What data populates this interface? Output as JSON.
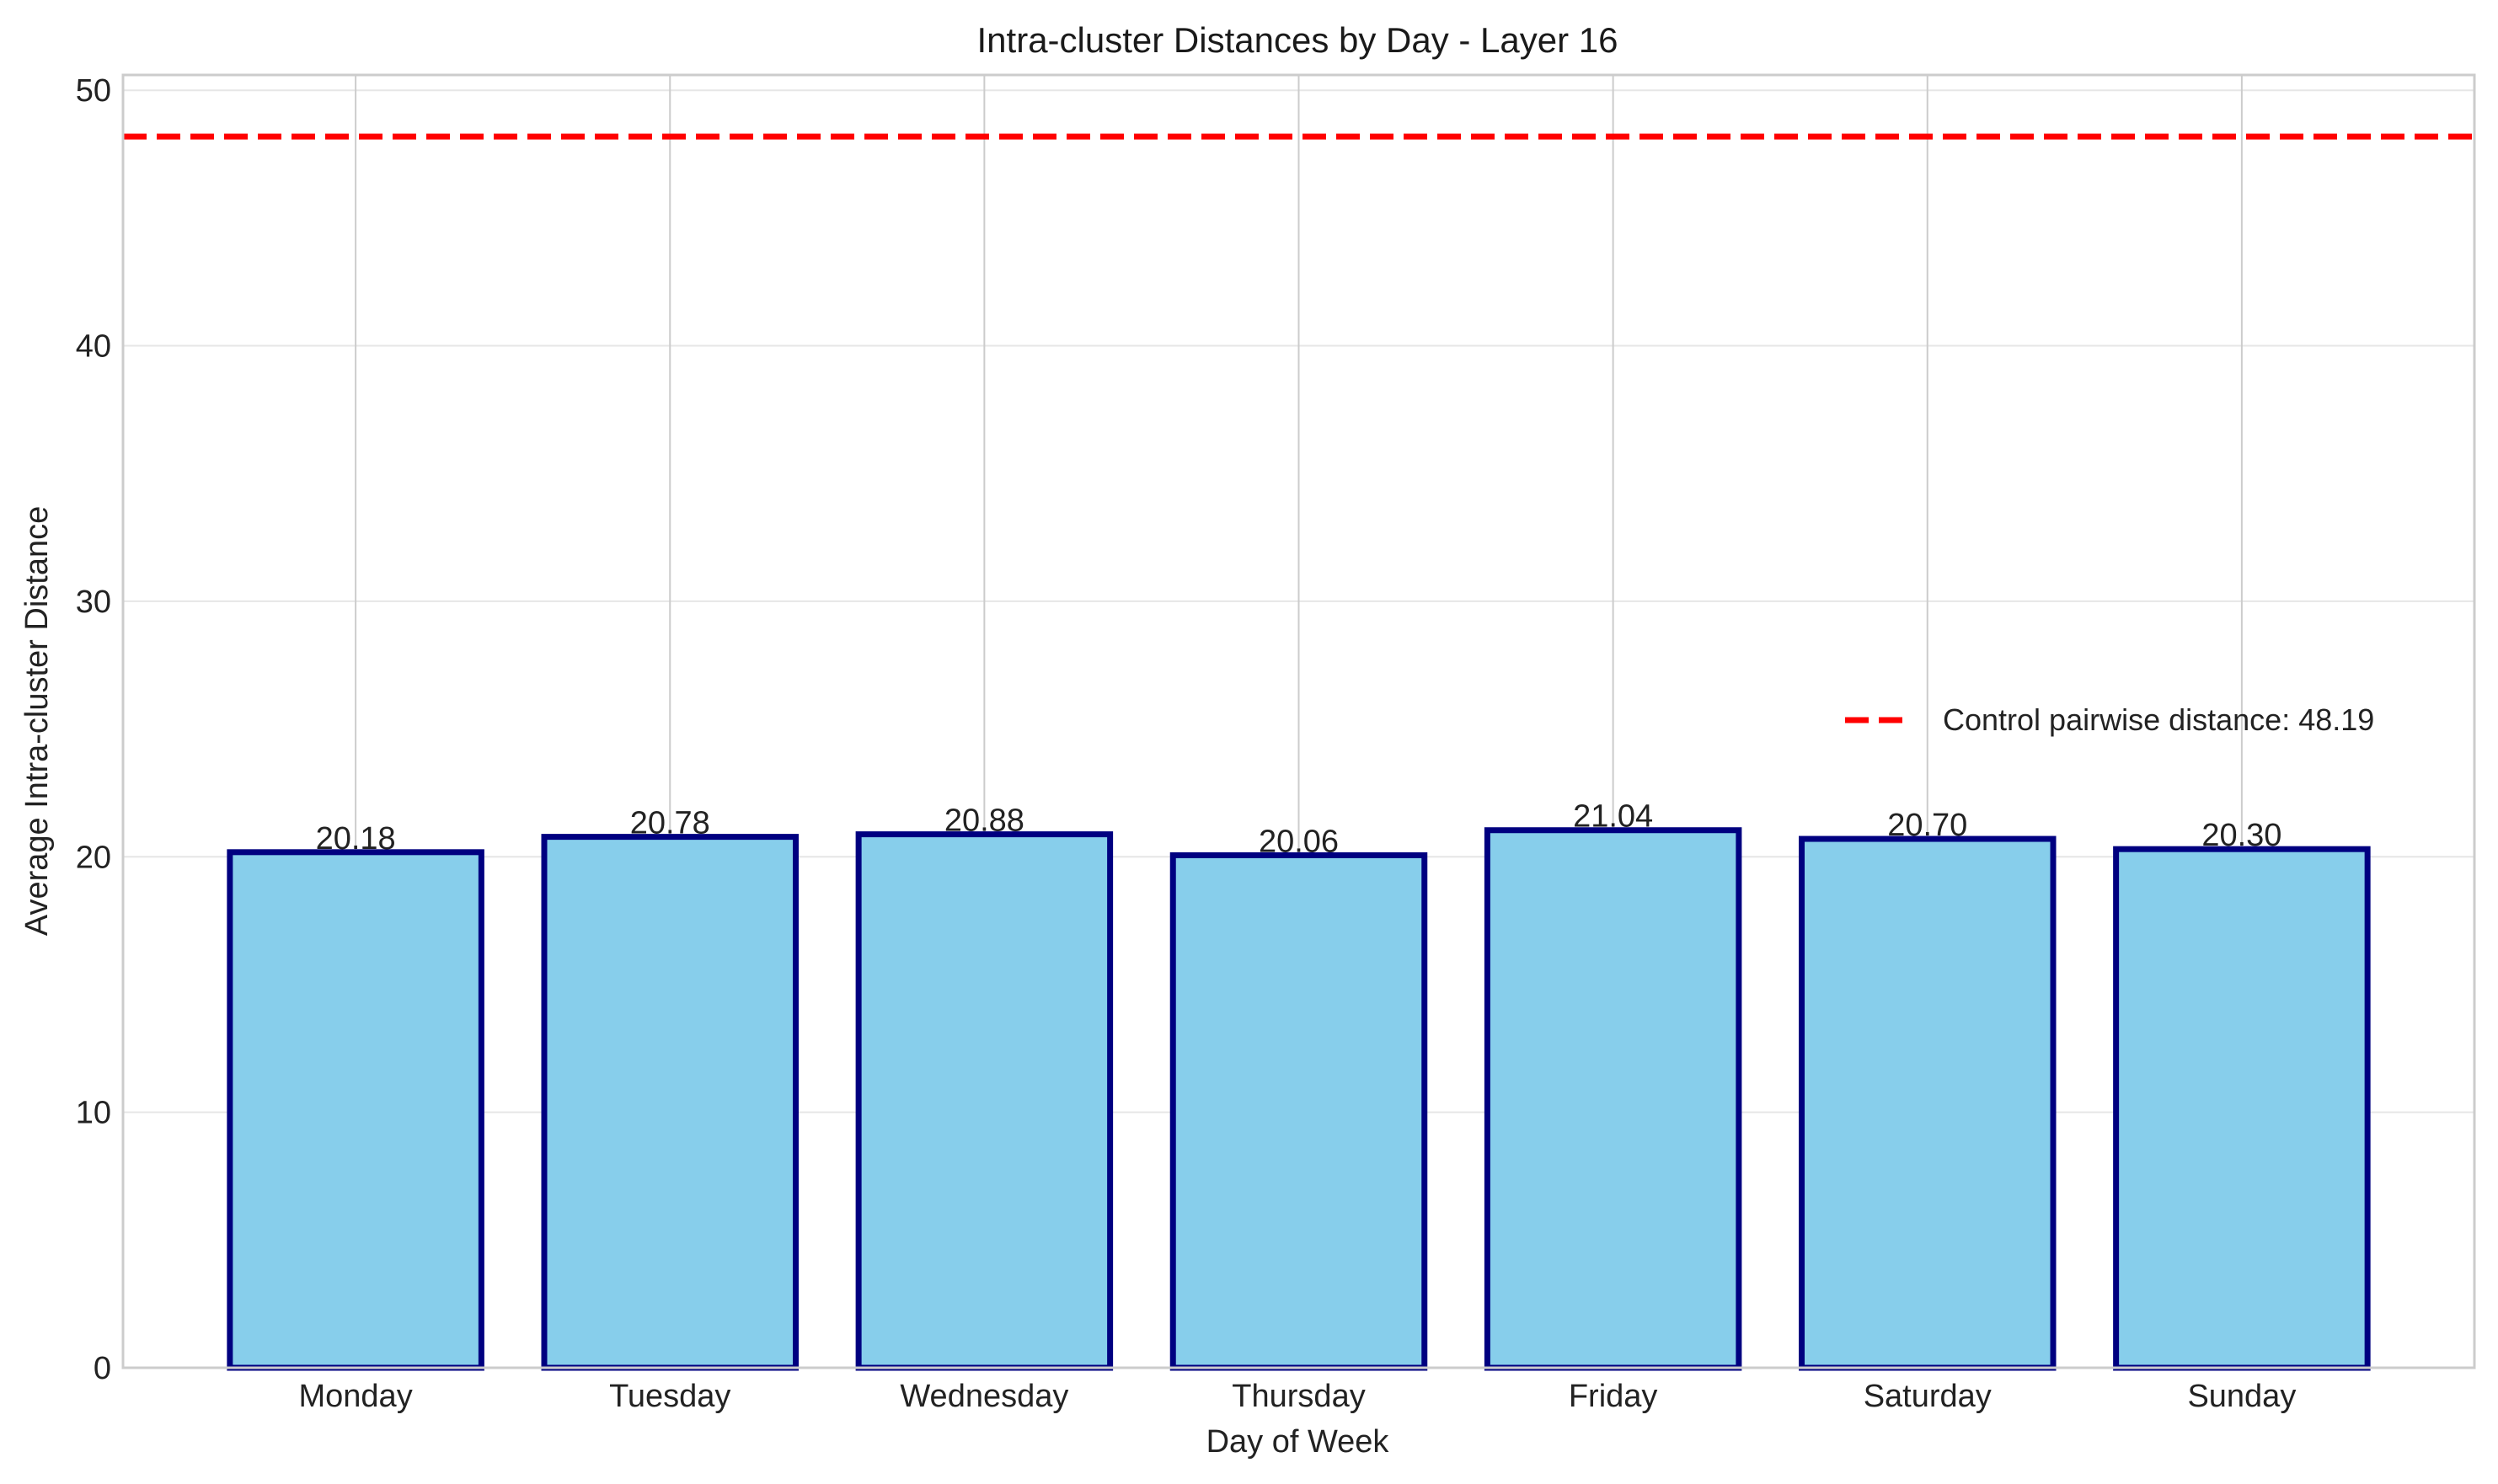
{
  "chart_data": {
    "type": "bar",
    "title": "Intra-cluster Distances by Day - Layer 16",
    "xlabel": "Day of Week",
    "ylabel": "Average Intra-cluster Distance",
    "categories": [
      "Monday",
      "Tuesday",
      "Wednesday",
      "Thursday",
      "Friday",
      "Saturday",
      "Sunday"
    ],
    "values": [
      20.18,
      20.78,
      20.88,
      20.06,
      21.04,
      20.7,
      20.3
    ],
    "value_labels": [
      "20.18",
      "20.78",
      "20.88",
      "20.06",
      "21.04",
      "20.70",
      "20.30"
    ],
    "ylim": [
      0,
      50.6
    ],
    "yticks": [
      0,
      10,
      20,
      30,
      40,
      50
    ],
    "ytick_labels": [
      "0",
      "10",
      "20",
      "30",
      "40",
      "50"
    ],
    "grid": true,
    "reference_line": {
      "value": 48.19,
      "style": "dashed",
      "color": "#ff0000",
      "label": "Control pairwise distance: 48.19"
    },
    "legend": {
      "position": "right",
      "entries": [
        "Control pairwise distance: 48.19"
      ]
    },
    "colors": {
      "bar_fill": "#87ceeb",
      "bar_edge": "#000080",
      "reference_line": "#ff0000",
      "grid": "#e6e6e6",
      "vertical_grid": "#cccccc",
      "spine": "#cccccc"
    }
  }
}
